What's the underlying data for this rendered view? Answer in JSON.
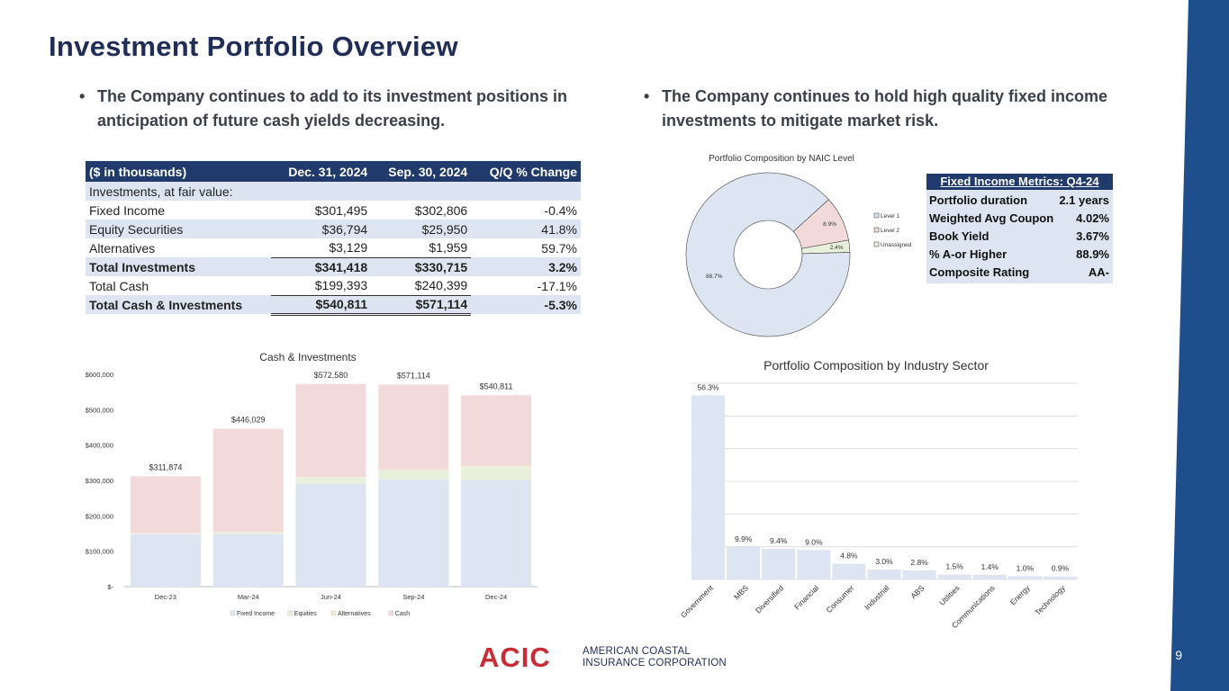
{
  "page": {
    "title": "Investment Portfolio Overview",
    "page_number": "9"
  },
  "bullets": {
    "left": "The Company continues to add to its investment positions in anticipation of future cash yields decreasing.",
    "right": "The Company continues to hold high quality fixed income investments to mitigate market risk.",
    "marker": "•"
  },
  "table": {
    "headers": [
      "($ in thousands)",
      "Dec. 31, 2024",
      "Sep. 30, 2024",
      "Q/Q % Change"
    ],
    "rows": [
      {
        "label": "Investments, at fair value:",
        "dec": "",
        "sep": "",
        "chg": ""
      },
      {
        "label": "Fixed Income",
        "dec": "$301,495",
        "sep": "$302,806",
        "chg": "-0.4%"
      },
      {
        "label": "Equity Securities",
        "dec": "$36,794",
        "sep": "$25,950",
        "chg": "41.8%"
      },
      {
        "label": "Alternatives",
        "dec": "$3,129",
        "sep": "$1,959",
        "chg": "59.7%"
      },
      {
        "label": "Total Investments",
        "dec": "$341,418",
        "sep": "$330,715",
        "chg": "3.2%"
      },
      {
        "label": "Total Cash",
        "dec": "$199,393",
        "sep": "$240,399",
        "chg": "-17.1%"
      },
      {
        "label": "Total Cash & Investments",
        "dec": "$540,811",
        "sep": "$571,114",
        "chg": "-5.3%"
      }
    ]
  },
  "metrics": {
    "title": "Fixed Income Metrics: Q4-24",
    "rows": [
      {
        "label": "Portfolio duration",
        "value": "2.1 years"
      },
      {
        "label": "Weighted Avg Coupon",
        "value": "4.02%"
      },
      {
        "label": "Book Yield",
        "value": "3.67%"
      },
      {
        "label": "% A-or Higher",
        "value": "88.9%"
      },
      {
        "label": "Composite Rating",
        "value": "AA-"
      }
    ]
  },
  "colors": {
    "navy": "#1f2d57",
    "table_header": "#1f3a6b",
    "band": "#1f4e8c",
    "fixed_income": "#dce5f1",
    "equities": "#e8f0dc",
    "alternatives": "#f4ecd8",
    "cash": "#f2dada",
    "logo_red": "#c62d36"
  },
  "chart_data": [
    {
      "type": "donut",
      "title": "Portfolio Composition by NAIC Level",
      "series": [
        {
          "name": "Level 1",
          "value": 88.7,
          "label": "88.7%",
          "color": "#dce5f1"
        },
        {
          "name": "Level 2",
          "value": 8.9,
          "label": "8.9%",
          "color": "#f2dada"
        },
        {
          "name": "Unassigned",
          "value": 2.4,
          "label": "2.4%",
          "color": "#e8f0dc"
        }
      ],
      "legend": "right"
    },
    {
      "type": "bar",
      "stacked": true,
      "title": "Cash & Investments",
      "categories": [
        "Dec-23",
        "Mar-24",
        "Jun-24",
        "Sep-24",
        "Dec-24"
      ],
      "series": [
        {
          "name": "Fixed Income",
          "values": [
            148000,
            148000,
            290000,
            302806,
            301495
          ],
          "color": "#dce5f1"
        },
        {
          "name": "Equities",
          "values": [
            3000,
            5000,
            18000,
            25950,
            36794
          ],
          "color": "#e8f0dc"
        },
        {
          "name": "Alternatives",
          "values": [
            1000,
            1000,
            2000,
            1959,
            3129
          ],
          "color": "#f4ecd8"
        },
        {
          "name": "Cash",
          "values": [
            159874,
            292029,
            262580,
            240399,
            199393
          ],
          "color": "#f2dada"
        }
      ],
      "totals": [
        "$311,874",
        "$446,029",
        "$572,580",
        "$571,114",
        "$540,811"
      ],
      "yticks": [
        "$-",
        "$100,000",
        "$200,000",
        "$300,000",
        "$400,000",
        "$500,000",
        "$600,000"
      ],
      "ylim": [
        0,
        600000
      ],
      "grid": false,
      "legend": "bottom"
    },
    {
      "type": "bar",
      "title": "Portfolio Composition by Industry Sector",
      "categories": [
        "Government",
        "MBS",
        "Diversified",
        "Financial",
        "Consumer",
        "Industrial",
        "ABS",
        "Utilities",
        "Communications",
        "Energy",
        "Technology"
      ],
      "values": [
        56.3,
        9.9,
        9.4,
        9.0,
        4.8,
        3.0,
        2.8,
        1.5,
        1.4,
        1.0,
        0.9
      ],
      "labels": [
        "56.3%",
        "9.9%",
        "9.4%",
        "9.0%",
        "4.8%",
        "3.0%",
        "2.8%",
        "1.5%",
        "1.4%",
        "1.0%",
        "0.9%"
      ],
      "ylim": [
        0,
        60
      ],
      "grid": true,
      "color": "#dce5f1"
    }
  ],
  "logo": {
    "mark": "ACIC",
    "line1": "AMERICAN COASTAL",
    "line2": "INSURANCE CORPORATION"
  }
}
